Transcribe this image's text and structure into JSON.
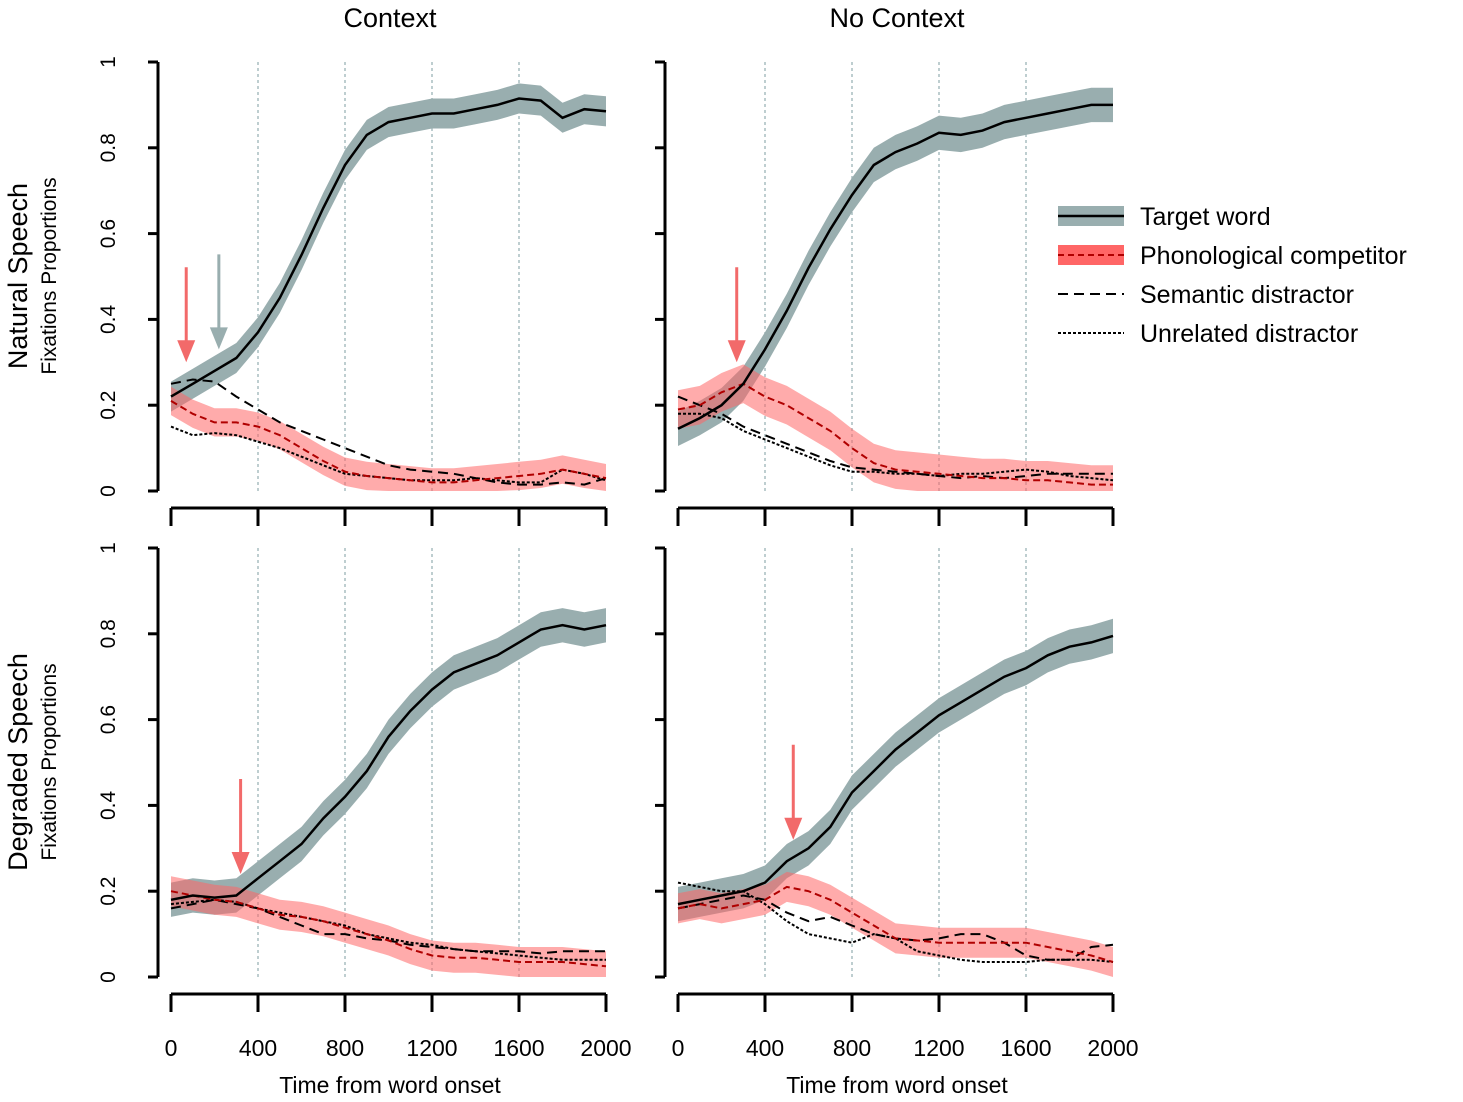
{
  "chart_data": {
    "type": "line",
    "col_titles": [
      "Context",
      "No Context"
    ],
    "row_titles": [
      "Natural Speech",
      "Degraded Speech"
    ],
    "ylabel": "Fixations Proportions",
    "xlabel": "Time from word onset",
    "xlim": [
      0,
      2000
    ],
    "ylim": [
      0,
      1
    ],
    "xticks": [
      "0",
      "400",
      "800",
      "1200",
      "1600",
      "2000"
    ],
    "xtick_values": [
      0,
      400,
      800,
      1200,
      1600,
      2000
    ],
    "yticks": [
      "0",
      "0.2",
      "0.4",
      "0.6",
      "0.8",
      "1"
    ],
    "ytick_values": [
      0,
      0.2,
      0.4,
      0.6,
      0.8,
      1
    ],
    "grid_x": [
      400,
      800,
      1200,
      1600
    ],
    "legend": {
      "placement": "right",
      "entries": [
        {
          "label": "Target word",
          "style": "solid-band",
          "band_color": "#99AEAF",
          "line_color": "#000000"
        },
        {
          "label": "Phonological competitor",
          "style": "dashed-band",
          "band_color": "#FF6666",
          "line_color": "#B00000"
        },
        {
          "label": "Semantic distractor",
          "style": "dashed",
          "line_color": "#000000"
        },
        {
          "label": "Unrelated distractor",
          "style": "dotted",
          "line_color": "#000000"
        }
      ]
    },
    "colors": {
      "target_band": "#99AEAF",
      "phon_band": "#FF6666",
      "phon_line": "#B00000",
      "overlap": "#8B2A2E",
      "grid": "#A9BDC0",
      "arrow_red": "#F26A6A",
      "arrow_gray": "#99AEAF"
    },
    "x": [
      0,
      100,
      200,
      300,
      400,
      500,
      600,
      700,
      800,
      900,
      1000,
      1100,
      1200,
      1300,
      1400,
      1500,
      1600,
      1700,
      1800,
      1900,
      2000
    ],
    "panels": [
      {
        "row": "Natural Speech",
        "col": "Context",
        "target": [
          0.22,
          0.25,
          0.28,
          0.31,
          0.37,
          0.45,
          0.55,
          0.66,
          0.76,
          0.83,
          0.86,
          0.87,
          0.88,
          0.88,
          0.89,
          0.9,
          0.915,
          0.91,
          0.87,
          0.89,
          0.885
        ],
        "target_ci": 0.035,
        "phonological": [
          0.21,
          0.18,
          0.16,
          0.16,
          0.15,
          0.13,
          0.1,
          0.07,
          0.045,
          0.035,
          0.03,
          0.025,
          0.02,
          0.02,
          0.025,
          0.03,
          0.035,
          0.04,
          0.05,
          0.04,
          0.03
        ],
        "phonological_ci": 0.033,
        "semantic": [
          0.25,
          0.26,
          0.255,
          0.22,
          0.19,
          0.16,
          0.14,
          0.12,
          0.1,
          0.08,
          0.06,
          0.05,
          0.045,
          0.04,
          0.03,
          0.02,
          0.015,
          0.015,
          0.02,
          0.015,
          0.03
        ],
        "unrelated": [
          0.15,
          0.13,
          0.135,
          0.13,
          0.115,
          0.1,
          0.08,
          0.06,
          0.04,
          0.035,
          0.03,
          0.025,
          0.025,
          0.025,
          0.03,
          0.025,
          0.02,
          0.02,
          0.05,
          0.04,
          0.025
        ],
        "arrows": [
          {
            "x": 70,
            "color": "red"
          },
          {
            "x": 220,
            "color": "gray"
          }
        ]
      },
      {
        "row": "Natural Speech",
        "col": "No Context",
        "target": [
          0.145,
          0.17,
          0.2,
          0.25,
          0.33,
          0.42,
          0.52,
          0.61,
          0.69,
          0.76,
          0.79,
          0.81,
          0.835,
          0.83,
          0.84,
          0.86,
          0.87,
          0.88,
          0.89,
          0.9,
          0.9
        ],
        "target_ci": 0.04,
        "phonological": [
          0.19,
          0.2,
          0.23,
          0.25,
          0.22,
          0.2,
          0.17,
          0.14,
          0.1,
          0.065,
          0.05,
          0.045,
          0.04,
          0.035,
          0.03,
          0.03,
          0.025,
          0.025,
          0.02,
          0.015,
          0.015
        ],
        "phonological_ci": 0.045,
        "semantic": [
          0.22,
          0.2,
          0.18,
          0.15,
          0.13,
          0.11,
          0.09,
          0.07,
          0.055,
          0.05,
          0.045,
          0.04,
          0.035,
          0.03,
          0.035,
          0.03,
          0.035,
          0.04,
          0.04,
          0.04,
          0.04
        ],
        "unrelated": [
          0.18,
          0.18,
          0.17,
          0.14,
          0.12,
          0.1,
          0.08,
          0.06,
          0.045,
          0.045,
          0.04,
          0.04,
          0.035,
          0.04,
          0.04,
          0.045,
          0.05,
          0.045,
          0.035,
          0.03,
          0.025
        ],
        "arrows": [
          {
            "x": 270,
            "color": "red"
          }
        ]
      },
      {
        "row": "Degraded Speech",
        "col": "Context",
        "target": [
          0.18,
          0.19,
          0.185,
          0.19,
          0.23,
          0.27,
          0.31,
          0.37,
          0.42,
          0.48,
          0.56,
          0.62,
          0.67,
          0.71,
          0.73,
          0.75,
          0.78,
          0.81,
          0.82,
          0.81,
          0.82
        ],
        "target_ci": 0.04,
        "phonological": [
          0.2,
          0.19,
          0.18,
          0.175,
          0.16,
          0.145,
          0.14,
          0.13,
          0.115,
          0.1,
          0.085,
          0.065,
          0.05,
          0.045,
          0.045,
          0.04,
          0.035,
          0.035,
          0.035,
          0.03,
          0.025
        ],
        "phonological_ci": 0.035,
        "semantic": [
          0.16,
          0.17,
          0.18,
          0.17,
          0.16,
          0.14,
          0.12,
          0.1,
          0.1,
          0.09,
          0.085,
          0.075,
          0.07,
          0.065,
          0.06,
          0.06,
          0.06,
          0.055,
          0.06,
          0.06,
          0.06
        ],
        "unrelated": [
          0.17,
          0.175,
          0.18,
          0.175,
          0.16,
          0.15,
          0.14,
          0.13,
          0.12,
          0.1,
          0.09,
          0.08,
          0.075,
          0.065,
          0.06,
          0.055,
          0.05,
          0.045,
          0.04,
          0.04,
          0.04
        ],
        "arrows": [
          {
            "x": 320,
            "color": "red"
          }
        ]
      },
      {
        "row": "Degraded Speech",
        "col": "No Context",
        "target": [
          0.17,
          0.18,
          0.19,
          0.2,
          0.22,
          0.27,
          0.3,
          0.35,
          0.43,
          0.48,
          0.53,
          0.57,
          0.61,
          0.64,
          0.67,
          0.7,
          0.72,
          0.75,
          0.77,
          0.78,
          0.795
        ],
        "target_ci": 0.04,
        "phonological": [
          0.16,
          0.17,
          0.16,
          0.17,
          0.18,
          0.21,
          0.2,
          0.18,
          0.15,
          0.12,
          0.09,
          0.085,
          0.08,
          0.08,
          0.08,
          0.08,
          0.08,
          0.07,
          0.06,
          0.05,
          0.035
        ],
        "phonological_ci": 0.035,
        "semantic": [
          0.16,
          0.17,
          0.18,
          0.19,
          0.18,
          0.15,
          0.13,
          0.14,
          0.12,
          0.1,
          0.09,
          0.085,
          0.09,
          0.1,
          0.1,
          0.08,
          0.05,
          0.04,
          0.04,
          0.07,
          0.075
        ],
        "unrelated": [
          0.22,
          0.21,
          0.2,
          0.2,
          0.17,
          0.13,
          0.1,
          0.09,
          0.08,
          0.1,
          0.09,
          0.06,
          0.05,
          0.04,
          0.035,
          0.035,
          0.035,
          0.04,
          0.04,
          0.04,
          0.035
        ],
        "arrows": [
          {
            "x": 530,
            "color": "red"
          }
        ]
      }
    ]
  }
}
